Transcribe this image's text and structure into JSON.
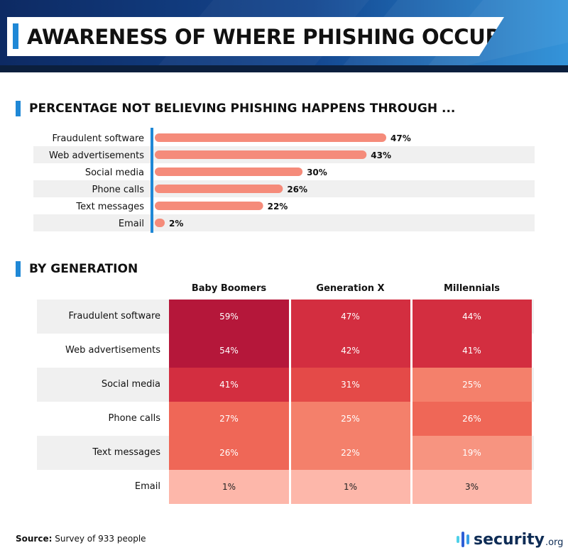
{
  "header": {
    "title": "AWARENESS OF WHERE PHISHING OCCURS"
  },
  "section1": {
    "title": "PERCENTAGE NOT BELIEVING PHISHING HAPPENS THROUGH ..."
  },
  "section2": {
    "title": "BY GENERATION"
  },
  "chart_data": [
    {
      "type": "bar",
      "orientation": "horizontal",
      "title": "PERCENTAGE NOT BELIEVING PHISHING HAPPENS THROUGH ...",
      "categories": [
        "Fraudulent software",
        "Web advertisements",
        "Social media",
        "Phone calls",
        "Text messages",
        "Email"
      ],
      "values": [
        47,
        43,
        30,
        26,
        22,
        2
      ],
      "value_labels": [
        "47%",
        "43%",
        "30%",
        "26%",
        "22%",
        "2%"
      ],
      "xlim": [
        0,
        47
      ],
      "bar_color": "#f58b7a",
      "axis_color": "#1f88d6",
      "band_color": "#f0f0f0"
    },
    {
      "type": "heatmap",
      "title": "BY GENERATION",
      "columns": [
        "Baby Boomers",
        "Generation X",
        "Millennials"
      ],
      "rows": [
        "Fraudulent software",
        "Web advertisements",
        "Social media",
        "Phone calls",
        "Text messages",
        "Email"
      ],
      "values": [
        [
          59,
          47,
          44
        ],
        [
          54,
          42,
          41
        ],
        [
          41,
          31,
          25
        ],
        [
          27,
          25,
          26
        ],
        [
          26,
          22,
          19
        ],
        [
          1,
          1,
          3
        ]
      ],
      "labels": [
        [
          "59%",
          "47%",
          "44%"
        ],
        [
          "54%",
          "42%",
          "41%"
        ],
        [
          "41%",
          "31%",
          "25%"
        ],
        [
          "27%",
          "25%",
          "26%"
        ],
        [
          "26%",
          "22%",
          "19%"
        ],
        [
          "1%",
          "1%",
          "3%"
        ]
      ],
      "color_scale": [
        {
          "min": 50,
          "color": "#b5173a"
        },
        {
          "min": 40,
          "color": "#d32e40"
        },
        {
          "min": 30,
          "color": "#e44a48"
        },
        {
          "min": 26,
          "color": "#ef6757"
        },
        {
          "min": 22,
          "color": "#f4806b"
        },
        {
          "min": 10,
          "color": "#f79480"
        },
        {
          "min": 0,
          "color": "#fdb7aa"
        }
      ],
      "text_dark_below": 10
    }
  ],
  "footer": {
    "source_label": "Source:",
    "source_text": " Survey of 933 people",
    "brand_name": "security",
    "brand_tld": ".org"
  },
  "colors": {
    "accent_blue": "#1f88d6",
    "header_dark": "#0e2c55",
    "header_mid": "#1b5ea8"
  }
}
